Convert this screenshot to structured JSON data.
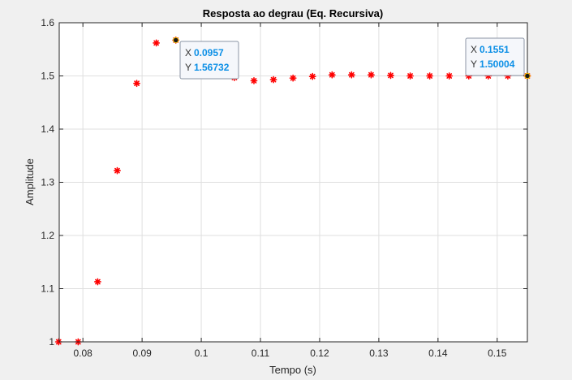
{
  "chart_data": {
    "type": "scatter",
    "title": "Resposta ao degrau (Eq. Recursiva)",
    "xlabel": "Tempo (s)",
    "ylabel": "Amplitude",
    "xlim": [
      0.076,
      0.1551
    ],
    "ylim": [
      1.0,
      1.6
    ],
    "xticks": [
      "0.08",
      "0.09",
      "0.1",
      "0.11",
      "0.12",
      "0.13",
      "0.14",
      "0.15"
    ],
    "xtick_values": [
      0.08,
      0.09,
      0.1,
      0.11,
      0.12,
      0.13,
      0.14,
      0.15
    ],
    "yticks": [
      "1",
      "1.1",
      "1.2",
      "1.3",
      "1.4",
      "1.5",
      "1.6"
    ],
    "ytick_values": [
      1.0,
      1.1,
      1.2,
      1.3,
      1.4,
      1.5,
      1.6
    ],
    "grid": true,
    "marker_color": "#ff0000",
    "series": [
      {
        "x": [
          0.0759,
          0.0792,
          0.0825,
          0.0858,
          0.0891,
          0.0924,
          0.0957,
          0.099,
          0.1023,
          0.1056,
          0.1089,
          0.1122,
          0.1155,
          0.1188,
          0.1221,
          0.1254,
          0.1287,
          0.132,
          0.1353,
          0.1386,
          0.1419,
          0.1452,
          0.1485,
          0.1518,
          0.1551
        ],
        "y": [
          1.0,
          1.0,
          1.113,
          1.322,
          1.486,
          1.562,
          1.56732,
          1.535,
          1.505,
          1.497,
          1.491,
          1.493,
          1.496,
          1.499,
          1.502,
          1.502,
          1.502,
          1.501,
          1.5,
          1.5,
          1.5,
          1.5,
          1.5,
          1.5,
          1.50004
        ]
      }
    ],
    "datatips": [
      {
        "x_label": "X",
        "x_value": "0.0957",
        "y_label": "Y",
        "y_value": "1.56732",
        "x": 0.0957,
        "y": 1.56732
      },
      {
        "x_label": "X",
        "x_value": "0.1551",
        "y_label": "Y",
        "y_value": "1.50004",
        "x": 0.1551,
        "y": 1.50004
      }
    ]
  }
}
